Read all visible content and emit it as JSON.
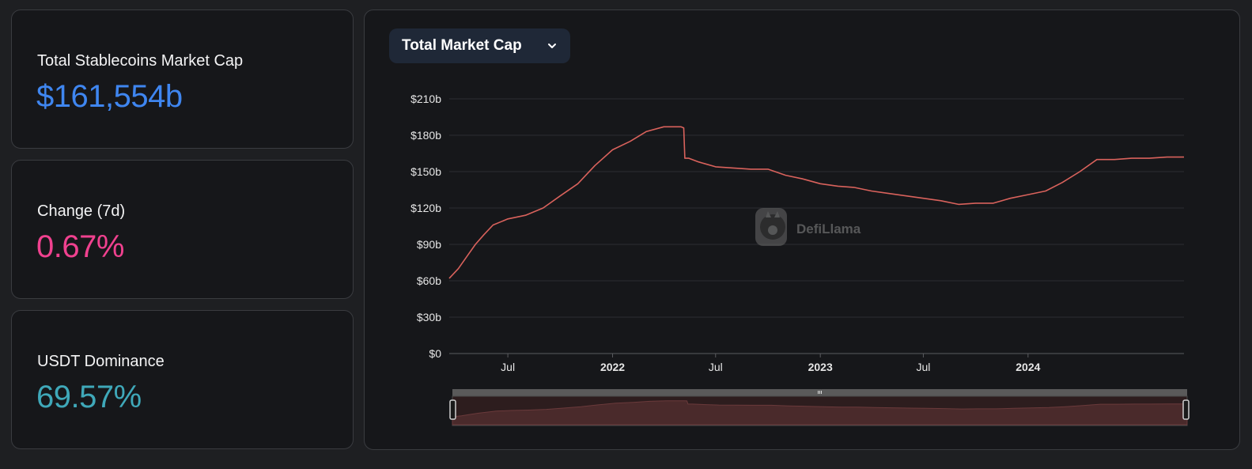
{
  "stats": {
    "market_cap": {
      "label": "Total Stablecoins Market Cap",
      "value": "$161,554b",
      "color": "#3f86f0"
    },
    "change_7d": {
      "label": "Change (7d)",
      "value": "0.67%",
      "color": "#f0418f"
    },
    "usdt_dominance": {
      "label": "USDT Dominance",
      "value": "69.57%",
      "color": "#3fa8b9"
    }
  },
  "chart_selector": {
    "label": "Total Market Cap",
    "icon": "chevron-down-icon"
  },
  "watermark": {
    "text": "DefiLlama"
  },
  "chart_data": {
    "type": "line",
    "series": [
      {
        "color": "#d9625c",
        "x": [
          "2021-03-20",
          "2021-04-05",
          "2021-04-20",
          "2021-05-05",
          "2021-05-20",
          "2021-06-05",
          "2021-07-01",
          "2021-08-01",
          "2021-09-01",
          "2021-10-01",
          "2021-11-01",
          "2021-12-01",
          "2022-01-01",
          "2022-02-01",
          "2022-03-01",
          "2022-04-01",
          "2022-05-01",
          "2022-05-06",
          "2022-05-08",
          "2022-05-15",
          "2022-06-01",
          "2022-07-01",
          "2022-08-01",
          "2022-09-01",
          "2022-10-01",
          "2022-11-01",
          "2022-12-01",
          "2023-01-01",
          "2023-02-01",
          "2023-03-01",
          "2023-04-01",
          "2023-05-01",
          "2023-06-01",
          "2023-07-01",
          "2023-08-01",
          "2023-09-01",
          "2023-10-01",
          "2023-11-01",
          "2023-12-01",
          "2024-01-01",
          "2024-02-01",
          "2024-03-01",
          "2024-04-01",
          "2024-05-01",
          "2024-06-01",
          "2024-07-01",
          "2024-08-01",
          "2024-09-01",
          "2024-10-01"
        ],
        "values": [
          62,
          70,
          80,
          90,
          98,
          106,
          111,
          114,
          120,
          130,
          140,
          155,
          168,
          175,
          183,
          187,
          187,
          186,
          161,
          161,
          158,
          154,
          153,
          152,
          152,
          147,
          144,
          140,
          138,
          137,
          134,
          132,
          130,
          128,
          126,
          123,
          124,
          124,
          128,
          131,
          134,
          141,
          150,
          160,
          160,
          161,
          161,
          162,
          162
        ]
      }
    ],
    "x_ticks": [
      {
        "label": "Jul",
        "date": "2021-07-01",
        "bold": false
      },
      {
        "label": "2022",
        "date": "2022-01-01",
        "bold": true
      },
      {
        "label": "Jul",
        "date": "2022-07-01",
        "bold": false
      },
      {
        "label": "2023",
        "date": "2023-01-01",
        "bold": true
      },
      {
        "label": "Jul",
        "date": "2023-07-01",
        "bold": false
      },
      {
        "label": "2024",
        "date": "2024-01-01",
        "bold": true
      }
    ],
    "y_ticks": [
      {
        "label": "$0",
        "value": 0
      },
      {
        "label": "$30b",
        "value": 30
      },
      {
        "label": "$60b",
        "value": 60
      },
      {
        "label": "$90b",
        "value": 90
      },
      {
        "label": "$120b",
        "value": 120
      },
      {
        "label": "$150b",
        "value": 150
      },
      {
        "label": "$180b",
        "value": 180
      },
      {
        "label": "$210b",
        "value": 210
      }
    ],
    "x_range": [
      "2021-03-20",
      "2024-10-01"
    ],
    "ylim": [
      0,
      210
    ],
    "grid": true
  }
}
